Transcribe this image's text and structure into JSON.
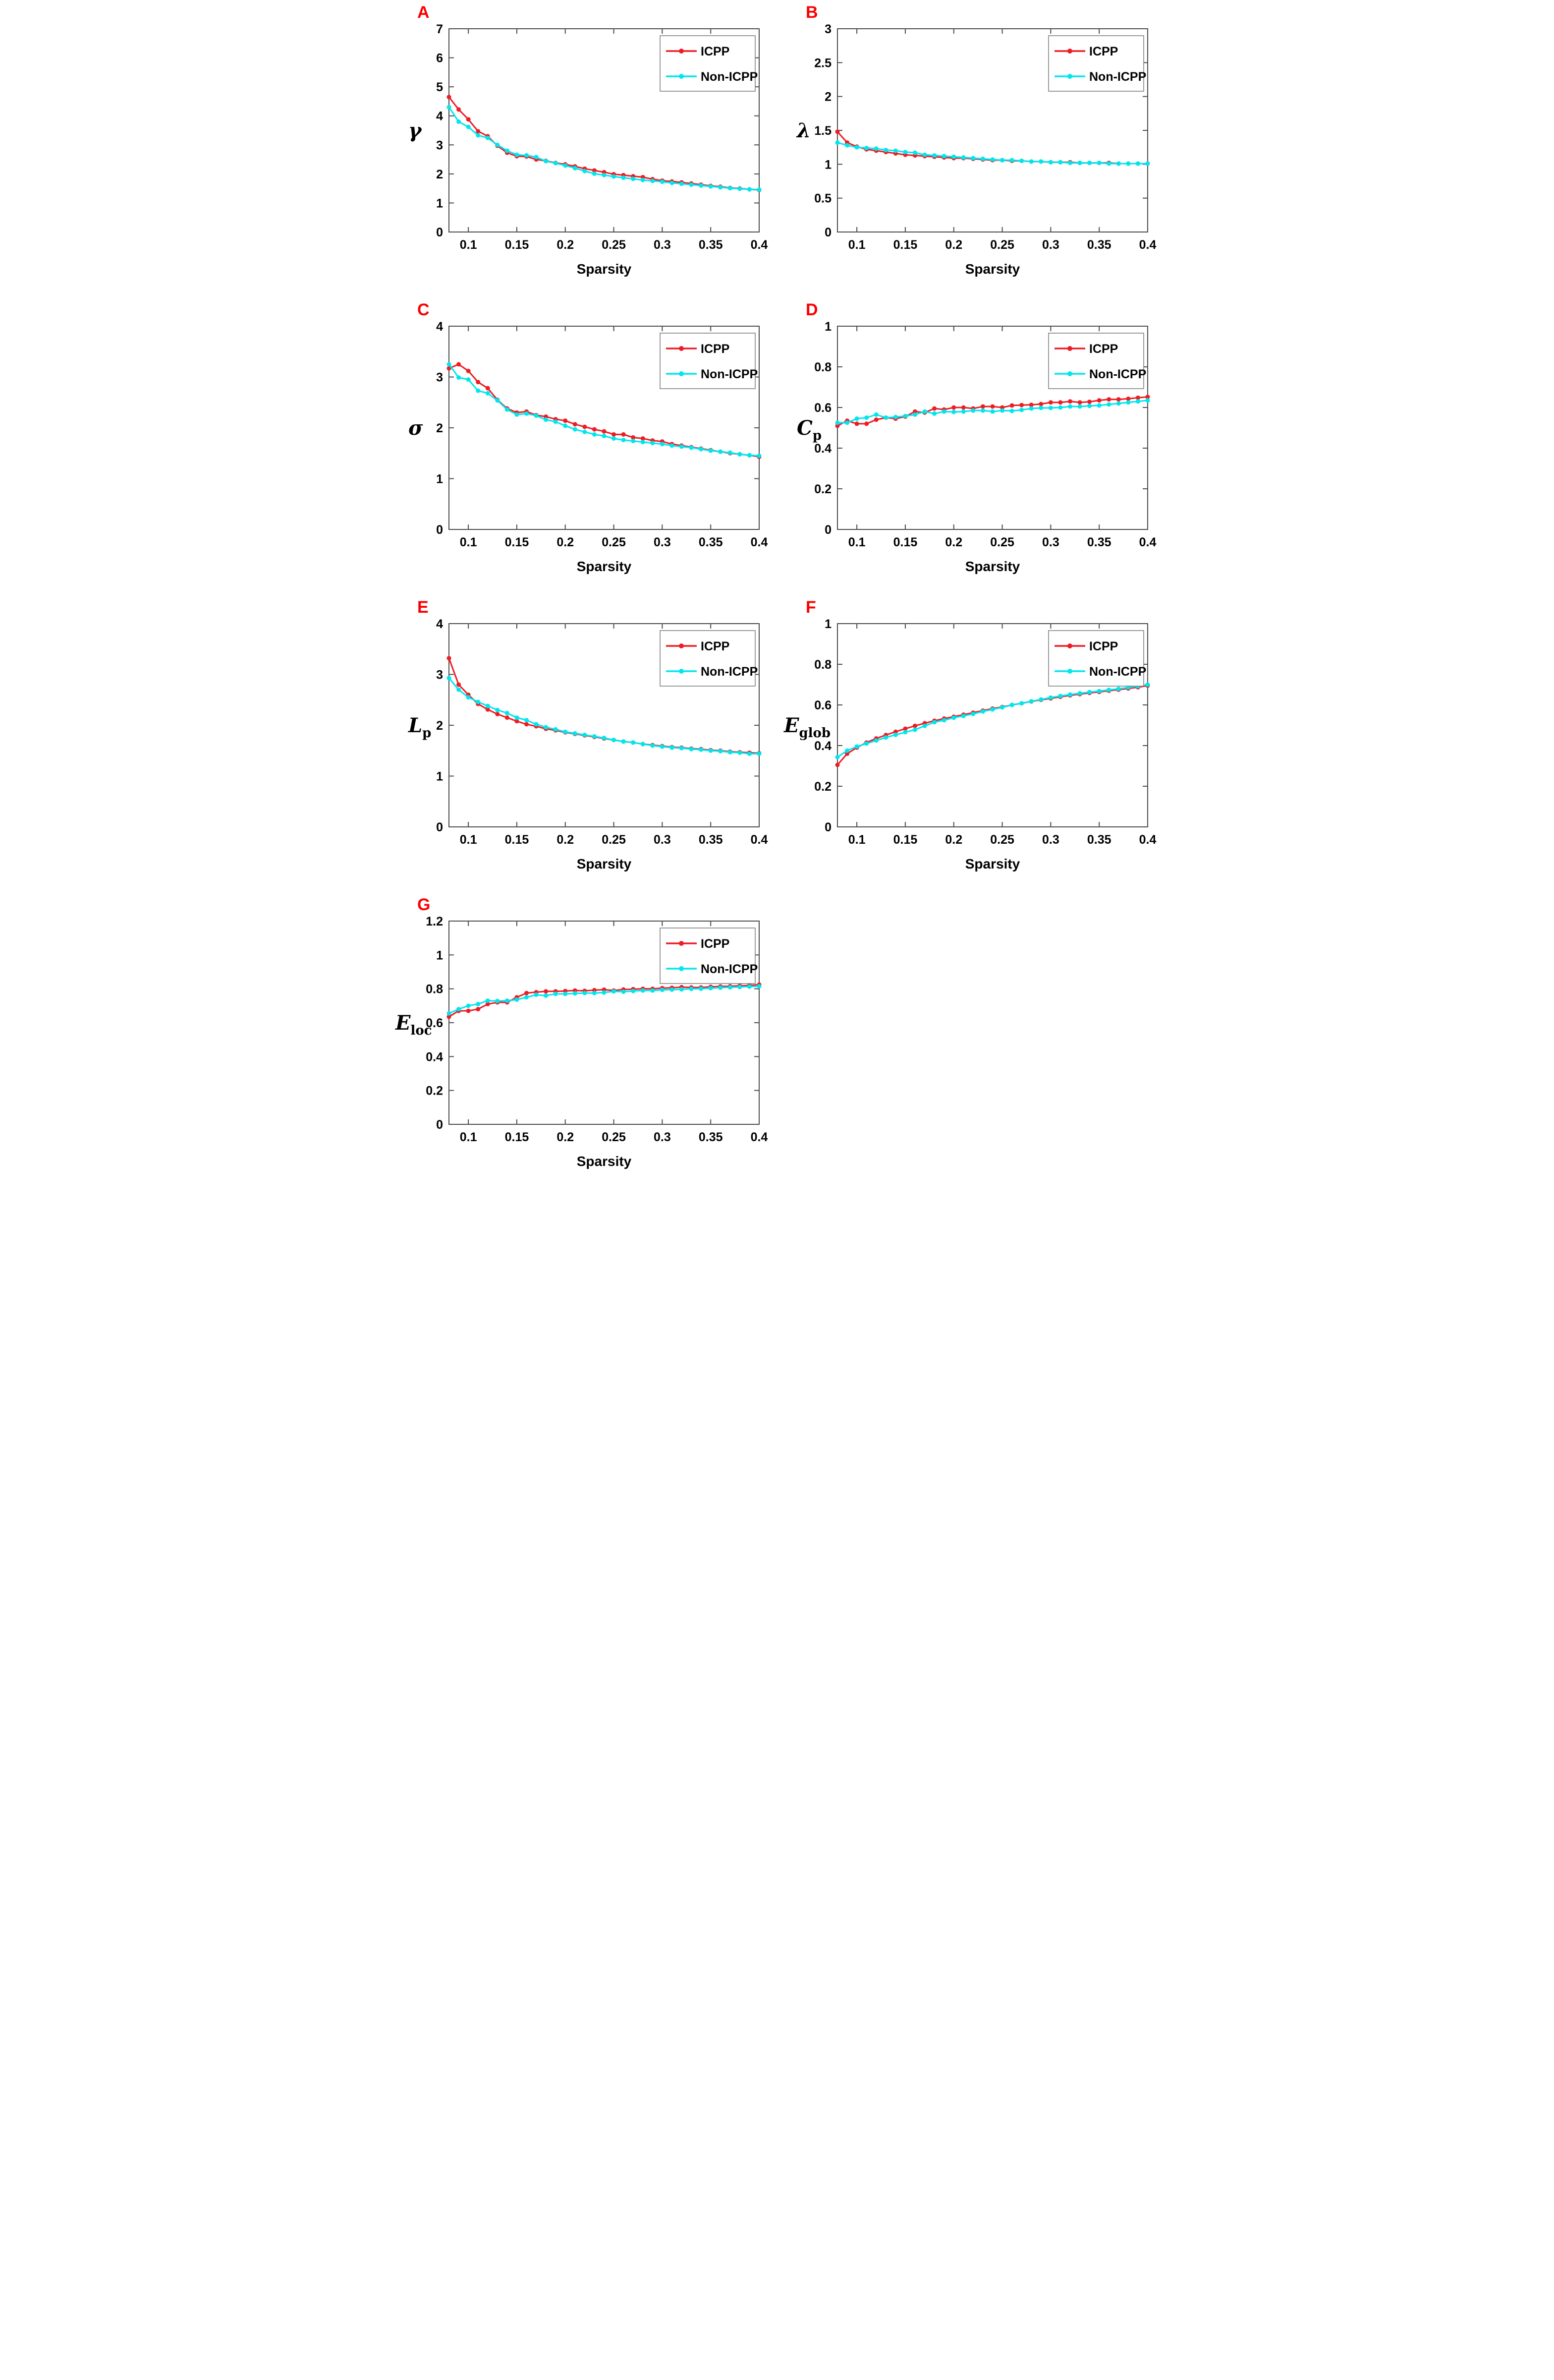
{
  "figure": {
    "xlabel": "Sparsity",
    "legend_items": [
      "ICPP",
      "Non-ICPP"
    ],
    "colors": {
      "icpp": "#ee1c24",
      "non_icpp": "#00e6ee",
      "panel_letter": "#fb0000",
      "axis": "#4d4d4d",
      "tick_text": "#000000",
      "legend_border": "#7a7a7a",
      "background": "#ffffff"
    }
  },
  "chart_data": [
    {
      "type": "line",
      "panel": "A",
      "ylabel": {
        "main": "γ",
        "sub": ""
      },
      "xlabel": "Sparsity",
      "xlim": [
        0.08,
        0.4
      ],
      "ylim": [
        0,
        7
      ],
      "xticks": [
        0.1,
        0.15,
        0.2,
        0.25,
        0.3,
        0.35,
        0.4
      ],
      "yticks": [
        0,
        1,
        2,
        3,
        4,
        5,
        6,
        7
      ],
      "grid": false,
      "legend_position": "top-right",
      "x": [
        0.08,
        0.09,
        0.1,
        0.11,
        0.12,
        0.13,
        0.14,
        0.15,
        0.16,
        0.17,
        0.18,
        0.19,
        0.2,
        0.21,
        0.22,
        0.23,
        0.24,
        0.25,
        0.26,
        0.27,
        0.28,
        0.29,
        0.3,
        0.31,
        0.32,
        0.33,
        0.34,
        0.35,
        0.36,
        0.37,
        0.38,
        0.39,
        0.4
      ],
      "series": [
        {
          "name": "ICPP",
          "color": "#ee1c24",
          "values": [
            4.65,
            4.22,
            3.88,
            3.47,
            3.3,
            2.97,
            2.73,
            2.61,
            2.6,
            2.5,
            2.45,
            2.38,
            2.33,
            2.26,
            2.18,
            2.12,
            2.06,
            1.99,
            1.96,
            1.92,
            1.89,
            1.82,
            1.77,
            1.74,
            1.71,
            1.67,
            1.63,
            1.59,
            1.56,
            1.52,
            1.5,
            1.47,
            1.45
          ]
        },
        {
          "name": "Non-ICPP",
          "color": "#00e6ee",
          "values": [
            4.3,
            3.8,
            3.62,
            3.33,
            3.24,
            3.0,
            2.8,
            2.66,
            2.64,
            2.58,
            2.44,
            2.37,
            2.29,
            2.2,
            2.1,
            2.01,
            1.96,
            1.91,
            1.87,
            1.83,
            1.79,
            1.76,
            1.73,
            1.69,
            1.66,
            1.63,
            1.6,
            1.57,
            1.54,
            1.51,
            1.49,
            1.47,
            1.46
          ]
        }
      ]
    },
    {
      "type": "line",
      "panel": "B",
      "ylabel": {
        "main": "λ",
        "sub": ""
      },
      "xlabel": "Sparsity",
      "xlim": [
        0.08,
        0.4
      ],
      "ylim": [
        0,
        3
      ],
      "xticks": [
        0.1,
        0.15,
        0.2,
        0.25,
        0.3,
        0.35,
        0.4
      ],
      "yticks": [
        0,
        0.5,
        1,
        1.5,
        2,
        2.5,
        3
      ],
      "grid": false,
      "legend_position": "top-right",
      "x": [
        0.08,
        0.09,
        0.1,
        0.11,
        0.12,
        0.13,
        0.14,
        0.15,
        0.16,
        0.17,
        0.18,
        0.19,
        0.2,
        0.21,
        0.22,
        0.23,
        0.24,
        0.25,
        0.26,
        0.27,
        0.28,
        0.29,
        0.3,
        0.31,
        0.32,
        0.33,
        0.34,
        0.35,
        0.36,
        0.37,
        0.38,
        0.39,
        0.4
      ],
      "series": [
        {
          "name": "ICPP",
          "color": "#ee1c24",
          "values": [
            1.48,
            1.32,
            1.26,
            1.22,
            1.2,
            1.18,
            1.16,
            1.14,
            1.13,
            1.12,
            1.11,
            1.1,
            1.09,
            1.09,
            1.08,
            1.07,
            1.06,
            1.06,
            1.05,
            1.05,
            1.04,
            1.04,
            1.03,
            1.03,
            1.03,
            1.02,
            1.02,
            1.02,
            1.02,
            1.01,
            1.01,
            1.01,
            1.01
          ]
        },
        {
          "name": "Non-ICPP",
          "color": "#00e6ee",
          "values": [
            1.32,
            1.28,
            1.25,
            1.24,
            1.23,
            1.21,
            1.2,
            1.18,
            1.17,
            1.14,
            1.13,
            1.12,
            1.11,
            1.1,
            1.09,
            1.08,
            1.07,
            1.06,
            1.06,
            1.05,
            1.04,
            1.04,
            1.03,
            1.03,
            1.02,
            1.02,
            1.02,
            1.02,
            1.01,
            1.01,
            1.01,
            1.01,
            1.01
          ]
        }
      ]
    },
    {
      "type": "line",
      "panel": "C",
      "ylabel": {
        "main": "σ",
        "sub": ""
      },
      "xlabel": "Sparsity",
      "xlim": [
        0.08,
        0.4
      ],
      "ylim": [
        0,
        4
      ],
      "xticks": [
        0.1,
        0.15,
        0.2,
        0.25,
        0.3,
        0.35,
        0.4
      ],
      "yticks": [
        0,
        1,
        2,
        3,
        4
      ],
      "grid": false,
      "legend_position": "top-right",
      "x": [
        0.08,
        0.09,
        0.1,
        0.11,
        0.12,
        0.13,
        0.14,
        0.15,
        0.16,
        0.17,
        0.18,
        0.19,
        0.2,
        0.21,
        0.22,
        0.23,
        0.24,
        0.25,
        0.26,
        0.27,
        0.28,
        0.29,
        0.3,
        0.31,
        0.32,
        0.33,
        0.34,
        0.35,
        0.36,
        0.37,
        0.38,
        0.39,
        0.4
      ],
      "series": [
        {
          "name": "ICPP",
          "color": "#ee1c24",
          "values": [
            3.17,
            3.25,
            3.12,
            2.9,
            2.78,
            2.55,
            2.38,
            2.3,
            2.32,
            2.25,
            2.22,
            2.17,
            2.14,
            2.07,
            2.02,
            1.97,
            1.93,
            1.87,
            1.87,
            1.81,
            1.79,
            1.75,
            1.73,
            1.68,
            1.65,
            1.62,
            1.59,
            1.56,
            1.53,
            1.5,
            1.48,
            1.46,
            1.43
          ]
        },
        {
          "name": "Non-ICPP",
          "color": "#00e6ee",
          "values": [
            3.25,
            2.99,
            2.95,
            2.73,
            2.68,
            2.54,
            2.36,
            2.26,
            2.28,
            2.24,
            2.16,
            2.12,
            2.04,
            1.97,
            1.92,
            1.87,
            1.84,
            1.79,
            1.76,
            1.74,
            1.72,
            1.7,
            1.68,
            1.65,
            1.63,
            1.61,
            1.58,
            1.55,
            1.53,
            1.51,
            1.48,
            1.46,
            1.45
          ]
        }
      ]
    },
    {
      "type": "line",
      "panel": "D",
      "ylabel": {
        "main": "C",
        "sub": "p"
      },
      "xlabel": "Sparsity",
      "xlim": [
        0.08,
        0.4
      ],
      "ylim": [
        0,
        1
      ],
      "xticks": [
        0.1,
        0.15,
        0.2,
        0.25,
        0.3,
        0.35,
        0.4
      ],
      "yticks": [
        0,
        0.2,
        0.4,
        0.6,
        0.8,
        1
      ],
      "grid": false,
      "legend_position": "top-right",
      "x": [
        0.08,
        0.09,
        0.1,
        0.11,
        0.12,
        0.13,
        0.14,
        0.15,
        0.16,
        0.17,
        0.18,
        0.19,
        0.2,
        0.21,
        0.22,
        0.23,
        0.24,
        0.25,
        0.26,
        0.27,
        0.28,
        0.29,
        0.3,
        0.31,
        0.32,
        0.33,
        0.34,
        0.35,
        0.36,
        0.37,
        0.38,
        0.39,
        0.4
      ],
      "series": [
        {
          "name": "ICPP",
          "color": "#ee1c24",
          "values": [
            0.51,
            0.535,
            0.52,
            0.52,
            0.54,
            0.55,
            0.545,
            0.555,
            0.58,
            0.575,
            0.595,
            0.59,
            0.6,
            0.6,
            0.595,
            0.605,
            0.605,
            0.6,
            0.61,
            0.612,
            0.613,
            0.617,
            0.625,
            0.625,
            0.63,
            0.625,
            0.628,
            0.635,
            0.64,
            0.64,
            0.643,
            0.648,
            0.652
          ]
        },
        {
          "name": "Non-ICPP",
          "color": "#00e6ee",
          "values": [
            0.525,
            0.525,
            0.545,
            0.55,
            0.565,
            0.55,
            0.553,
            0.558,
            0.565,
            0.58,
            0.57,
            0.58,
            0.578,
            0.58,
            0.585,
            0.585,
            0.58,
            0.585,
            0.583,
            0.588,
            0.595,
            0.598,
            0.598,
            0.6,
            0.605,
            0.605,
            0.608,
            0.61,
            0.615,
            0.62,
            0.625,
            0.63,
            0.635
          ]
        }
      ]
    },
    {
      "type": "line",
      "panel": "E",
      "ylabel": {
        "main": "L",
        "sub": "p"
      },
      "xlabel": "Sparsity",
      "xlim": [
        0.08,
        0.4
      ],
      "ylim": [
        0,
        4
      ],
      "xticks": [
        0.1,
        0.15,
        0.2,
        0.25,
        0.3,
        0.35,
        0.4
      ],
      "yticks": [
        0,
        1,
        2,
        3,
        4
      ],
      "grid": false,
      "legend_position": "top-right",
      "x": [
        0.08,
        0.09,
        0.1,
        0.11,
        0.12,
        0.13,
        0.14,
        0.15,
        0.16,
        0.17,
        0.18,
        0.19,
        0.2,
        0.21,
        0.22,
        0.23,
        0.24,
        0.25,
        0.26,
        0.27,
        0.28,
        0.29,
        0.3,
        0.31,
        0.32,
        0.33,
        0.34,
        0.35,
        0.36,
        0.37,
        0.38,
        0.39,
        0.4
      ],
      "series": [
        {
          "name": "ICPP",
          "color": "#ee1c24",
          "values": [
            3.32,
            2.8,
            2.6,
            2.42,
            2.31,
            2.22,
            2.15,
            2.08,
            2.02,
            1.98,
            1.93,
            1.9,
            1.86,
            1.83,
            1.8,
            1.77,
            1.74,
            1.71,
            1.68,
            1.66,
            1.63,
            1.61,
            1.59,
            1.57,
            1.56,
            1.54,
            1.53,
            1.51,
            1.5,
            1.48,
            1.47,
            1.46,
            1.45
          ]
        },
        {
          "name": "Non-ICPP",
          "color": "#00e6ee",
          "values": [
            2.93,
            2.7,
            2.55,
            2.46,
            2.38,
            2.3,
            2.24,
            2.15,
            2.1,
            2.02,
            1.96,
            1.92,
            1.87,
            1.84,
            1.81,
            1.78,
            1.75,
            1.71,
            1.68,
            1.66,
            1.63,
            1.6,
            1.58,
            1.56,
            1.55,
            1.53,
            1.52,
            1.5,
            1.49,
            1.47,
            1.46,
            1.44,
            1.44
          ]
        }
      ]
    },
    {
      "type": "line",
      "panel": "F",
      "ylabel": {
        "main": "E",
        "sub": "glob"
      },
      "xlabel": "Sparsity",
      "xlim": [
        0.08,
        0.4
      ],
      "ylim": [
        0,
        1
      ],
      "xticks": [
        0.1,
        0.15,
        0.2,
        0.25,
        0.3,
        0.35,
        0.4
      ],
      "yticks": [
        0,
        0.2,
        0.4,
        0.6,
        0.8,
        1
      ],
      "grid": false,
      "legend_position": "top-right",
      "x": [
        0.08,
        0.09,
        0.1,
        0.11,
        0.12,
        0.13,
        0.14,
        0.15,
        0.16,
        0.17,
        0.18,
        0.19,
        0.2,
        0.21,
        0.22,
        0.23,
        0.24,
        0.25,
        0.26,
        0.27,
        0.28,
        0.29,
        0.3,
        0.31,
        0.32,
        0.33,
        0.34,
        0.35,
        0.36,
        0.37,
        0.38,
        0.39,
        0.4
      ],
      "series": [
        {
          "name": "ICPP",
          "color": "#ee1c24",
          "values": [
            0.305,
            0.36,
            0.39,
            0.415,
            0.435,
            0.452,
            0.468,
            0.483,
            0.497,
            0.51,
            0.522,
            0.533,
            0.542,
            0.552,
            0.562,
            0.572,
            0.582,
            0.59,
            0.6,
            0.608,
            0.617,
            0.625,
            0.632,
            0.64,
            0.647,
            0.653,
            0.659,
            0.664,
            0.67,
            0.675,
            0.681,
            0.687,
            0.695
          ]
        },
        {
          "name": "Non-ICPP",
          "color": "#00e6ee",
          "values": [
            0.343,
            0.375,
            0.395,
            0.41,
            0.425,
            0.44,
            0.453,
            0.466,
            0.478,
            0.497,
            0.515,
            0.525,
            0.537,
            0.546,
            0.556,
            0.568,
            0.578,
            0.588,
            0.6,
            0.608,
            0.618,
            0.627,
            0.636,
            0.644,
            0.651,
            0.657,
            0.663,
            0.668,
            0.674,
            0.679,
            0.686,
            0.692,
            0.7
          ]
        }
      ]
    },
    {
      "type": "line",
      "panel": "G",
      "ylabel": {
        "main": "E",
        "sub": "loc"
      },
      "xlabel": "Sparsity",
      "xlim": [
        0.08,
        0.4
      ],
      "ylim": [
        0,
        1.2
      ],
      "xticks": [
        0.1,
        0.15,
        0.2,
        0.25,
        0.3,
        0.35,
        0.4
      ],
      "yticks": [
        0,
        0.2,
        0.4,
        0.6,
        0.8,
        1,
        1.2
      ],
      "grid": false,
      "legend_position": "top-right",
      "x": [
        0.08,
        0.09,
        0.1,
        0.11,
        0.12,
        0.13,
        0.14,
        0.15,
        0.16,
        0.17,
        0.18,
        0.19,
        0.2,
        0.21,
        0.22,
        0.23,
        0.24,
        0.25,
        0.26,
        0.27,
        0.28,
        0.29,
        0.3,
        0.31,
        0.32,
        0.33,
        0.34,
        0.35,
        0.36,
        0.37,
        0.38,
        0.39,
        0.4
      ],
      "series": [
        {
          "name": "ICPP",
          "color": "#ee1c24",
          "values": [
            0.635,
            0.67,
            0.67,
            0.68,
            0.71,
            0.72,
            0.72,
            0.75,
            0.775,
            0.78,
            0.785,
            0.785,
            0.787,
            0.79,
            0.788,
            0.792,
            0.795,
            0.79,
            0.796,
            0.798,
            0.8,
            0.8,
            0.804,
            0.806,
            0.81,
            0.808,
            0.808,
            0.812,
            0.814,
            0.815,
            0.818,
            0.82,
            0.825
          ]
        },
        {
          "name": "Non-ICPP",
          "color": "#00e6ee",
          "values": [
            0.655,
            0.68,
            0.7,
            0.71,
            0.73,
            0.728,
            0.73,
            0.736,
            0.75,
            0.765,
            0.76,
            0.77,
            0.77,
            0.773,
            0.775,
            0.775,
            0.778,
            0.785,
            0.783,
            0.787,
            0.79,
            0.79,
            0.794,
            0.795,
            0.797,
            0.8,
            0.801,
            0.804,
            0.807,
            0.809,
            0.811,
            0.813,
            0.815
          ]
        }
      ]
    }
  ]
}
